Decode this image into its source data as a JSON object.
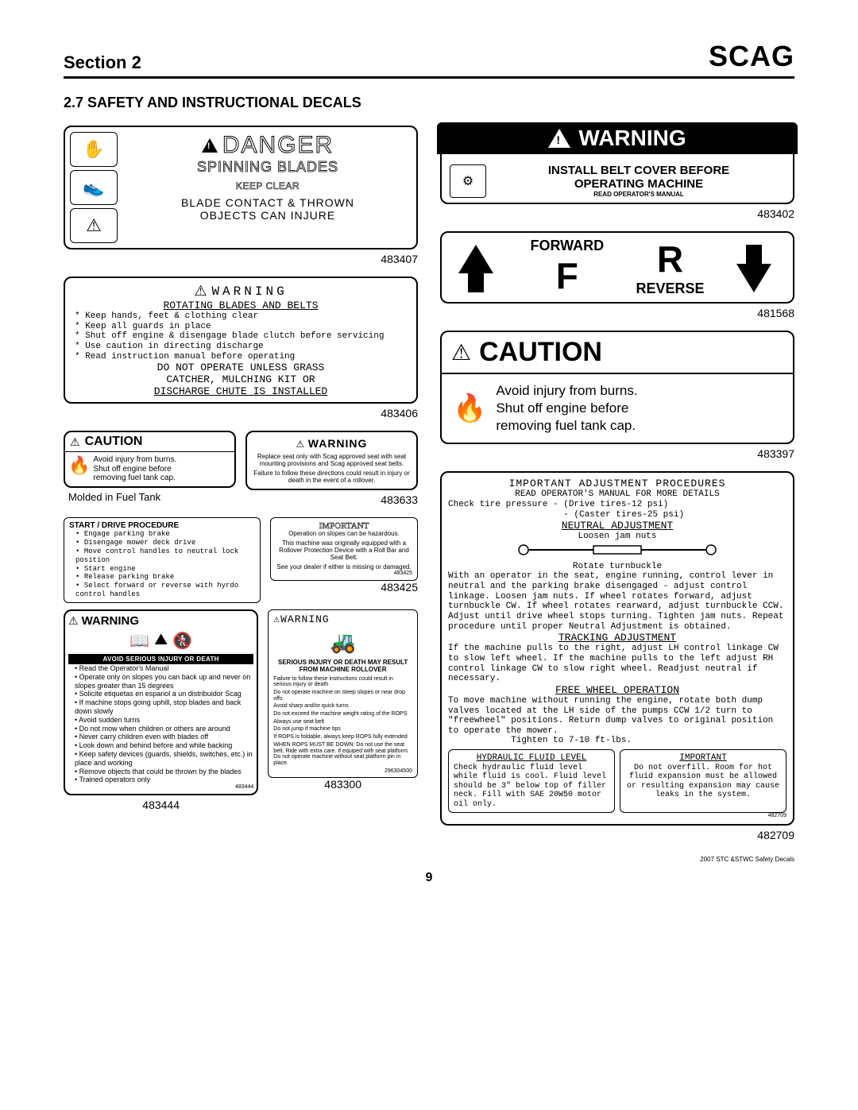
{
  "header": {
    "section": "Section 2",
    "logo": "SCAG"
  },
  "subsection": "2.7 SAFETY AND INSTRUCTIONAL DECALS",
  "page_number": "9",
  "footer_note": "2007 STC &STWC Safety Decals",
  "decals": {
    "danger": {
      "title": "DANGER",
      "sub1": "SPINNING BLADES",
      "sub2": "KEEP CLEAR",
      "sub3a": "BLADE CONTACT & THROWN",
      "sub3b": "OBJECTS CAN INJURE",
      "part": "483407"
    },
    "rot_warn": {
      "title": "WARNING",
      "sub": "ROTATING BLADES AND BELTS",
      "items": [
        "Keep hands, feet & clothing clear",
        "Keep all guards in place",
        "Shut off engine & disengage blade clutch before servicing",
        "Use caution in directing discharge",
        "Read instruction manual before operating"
      ],
      "line1": "DO NOT OPERATE UNLESS GRASS",
      "line2": "CATCHER, MULCHING KIT OR",
      "line3": "DISCHARGE CHUTE IS INSTALLED",
      "part": "483406"
    },
    "caution_small": {
      "title": "CAUTION",
      "l1": "Avoid injury from burns.",
      "l2": "Shut off engine before",
      "l3": "removing fuel tank cap.",
      "note": "Molded in Fuel Tank"
    },
    "seat_warn": {
      "title": "WARNING",
      "l1": "Replace seat only with Scag approved seat with seat mounting provisions and Scag approved seat belts.",
      "l2": "Failure to follow these directions could result in injury or death in the event of a rollover.",
      "part": "483633"
    },
    "start_drive": {
      "title": "START / DRIVE PROCEDURE",
      "items": [
        "Engage parking brake",
        "Disengage mower deck drive",
        "Move control handles to neutral lock position",
        "Start engine",
        "Release parking brake",
        "Select forward or reverse with hyrdo control handles"
      ]
    },
    "important_rops": {
      "title": "IMPORTANT",
      "l1": "Operation on slopes can be hazardous.",
      "l2": "This machine was originally equipped with a Rollover Protection Device with a Roll Bar and Seat Belt.",
      "l3": "See your dealer if either is missing or damaged.",
      "id": "483425",
      "part": "483425"
    },
    "avoid_serious": {
      "title": "WARNING",
      "bar": "AVOID SERIOUS INJURY OR DEATH",
      "items": [
        "Read the Operator's Manual",
        "Operate only on slopes you can back up and never on slopes greater than 15 degrees",
        "Solicite etiquetas en espanol a un distribuidor Scag",
        "If machine stops going uphill, stop blades and back down slowly",
        "Avoid sudden turns",
        "Do not mow when children or others are around",
        "Never carry children even with blades off",
        "Look down and behind before and while backing",
        "Keep safety devices (guards, shields, switches, etc.) in place and working",
        "Remove objects that could be thrown by the blades",
        "Trained operators only"
      ],
      "id": "483444",
      "part": "483444"
    },
    "rollover_warn": {
      "title": "WARNING",
      "bold": "SERIOUS INJURY OR DEATH MAY RESULT FROM MACHINE ROLLOVER",
      "items": [
        "Failure to follow these instructions could result in serious injury or death",
        "Do not operate machine on steep slopes or near drop offs",
        "Avoid sharp and/or quick turns",
        "Do not exceed the machine weight rating of the ROPS",
        "Always use seat belt",
        "Do not jump if machine tips",
        "If ROPS is foldable, always keep ROPS fully extended",
        "WHEN ROPS MUST BE DOWN: Do not use the seat belt. Ride with extra care. If equiped with seat platform. Do not operate machine without seat platform pin in place."
      ],
      "id": "296304500",
      "part": "483300"
    },
    "belt_cover": {
      "title": "WARNING",
      "l1": "INSTALL BELT COVER BEFORE",
      "l2": "OPERATING MACHINE",
      "l3": "READ OPERATOR'S MANUAL",
      "part": "483402"
    },
    "fwd_rev": {
      "fwd": "FORWARD",
      "f": "F",
      "r": "R",
      "rev": "REVERSE",
      "part": "481568"
    },
    "caution_big": {
      "title": "CAUTION",
      "l1": "Avoid injury from burns.",
      "l2": "Shut off engine before",
      "l3": "removing fuel tank cap.",
      "part": "483397"
    },
    "adjust": {
      "title": "IMPORTANT ADJUSTMENT PROCEDURES",
      "sub": "READ OPERATOR'S MANUAL FOR MORE DETAILS",
      "tire": "Check tire pressure - (Drive tires-12 psi)\n                      - (Caster tires-25 psi)",
      "neutral_h": "NEUTRAL ADJUSTMENT",
      "loosen": "Loosen jam nuts",
      "rotate": "Rotate turnbuckle",
      "neutral_body": "With an operator in the seat, engine running, control lever in neutral and the parking brake disengaged - adjust control linkage. Loosen jam nuts. If wheel rotates forward, adjust turnbuckle CW. If wheel rotates rearward, adjust turnbuckle CCW. Adjust until drive wheel stops turning. Tighten jam nuts. Repeat procedure until proper Neutral Adjustment is obtained.",
      "track_h": "TRACKING ADJUSTMENT",
      "track_body": "If the machine pulls to the right, adjust LH control linkage CW to slow left wheel. If the machine pulls to the left adjust RH control linkage CW to slow right wheel. Readjust neutral if necessary.",
      "free_h": "FREE WHEEL OPERATION",
      "free_body": "To move machine without running the engine, rotate both dump valves located at the LH side of the pumps CCW 1/2 turn to \"freewheel\" positions. Return dump valves to original position to operate the mower.\n            Tighten to 7-10 ft-lbs.",
      "hyd_h": "HYDRAULIC FLUID LEVEL",
      "hyd_body": "Check hydraulic fluid level while fluid is cool. Fluid level should be 3\" below top of filler neck. Fill with SAE 20W50 motor oil only.",
      "imp_h": "IMPORTANT",
      "imp_body": "Do not overfill. Room for hot fluid expansion must be allowed or resulting expansion may cause leaks in the system.",
      "id": "482709",
      "part": "482709"
    }
  }
}
